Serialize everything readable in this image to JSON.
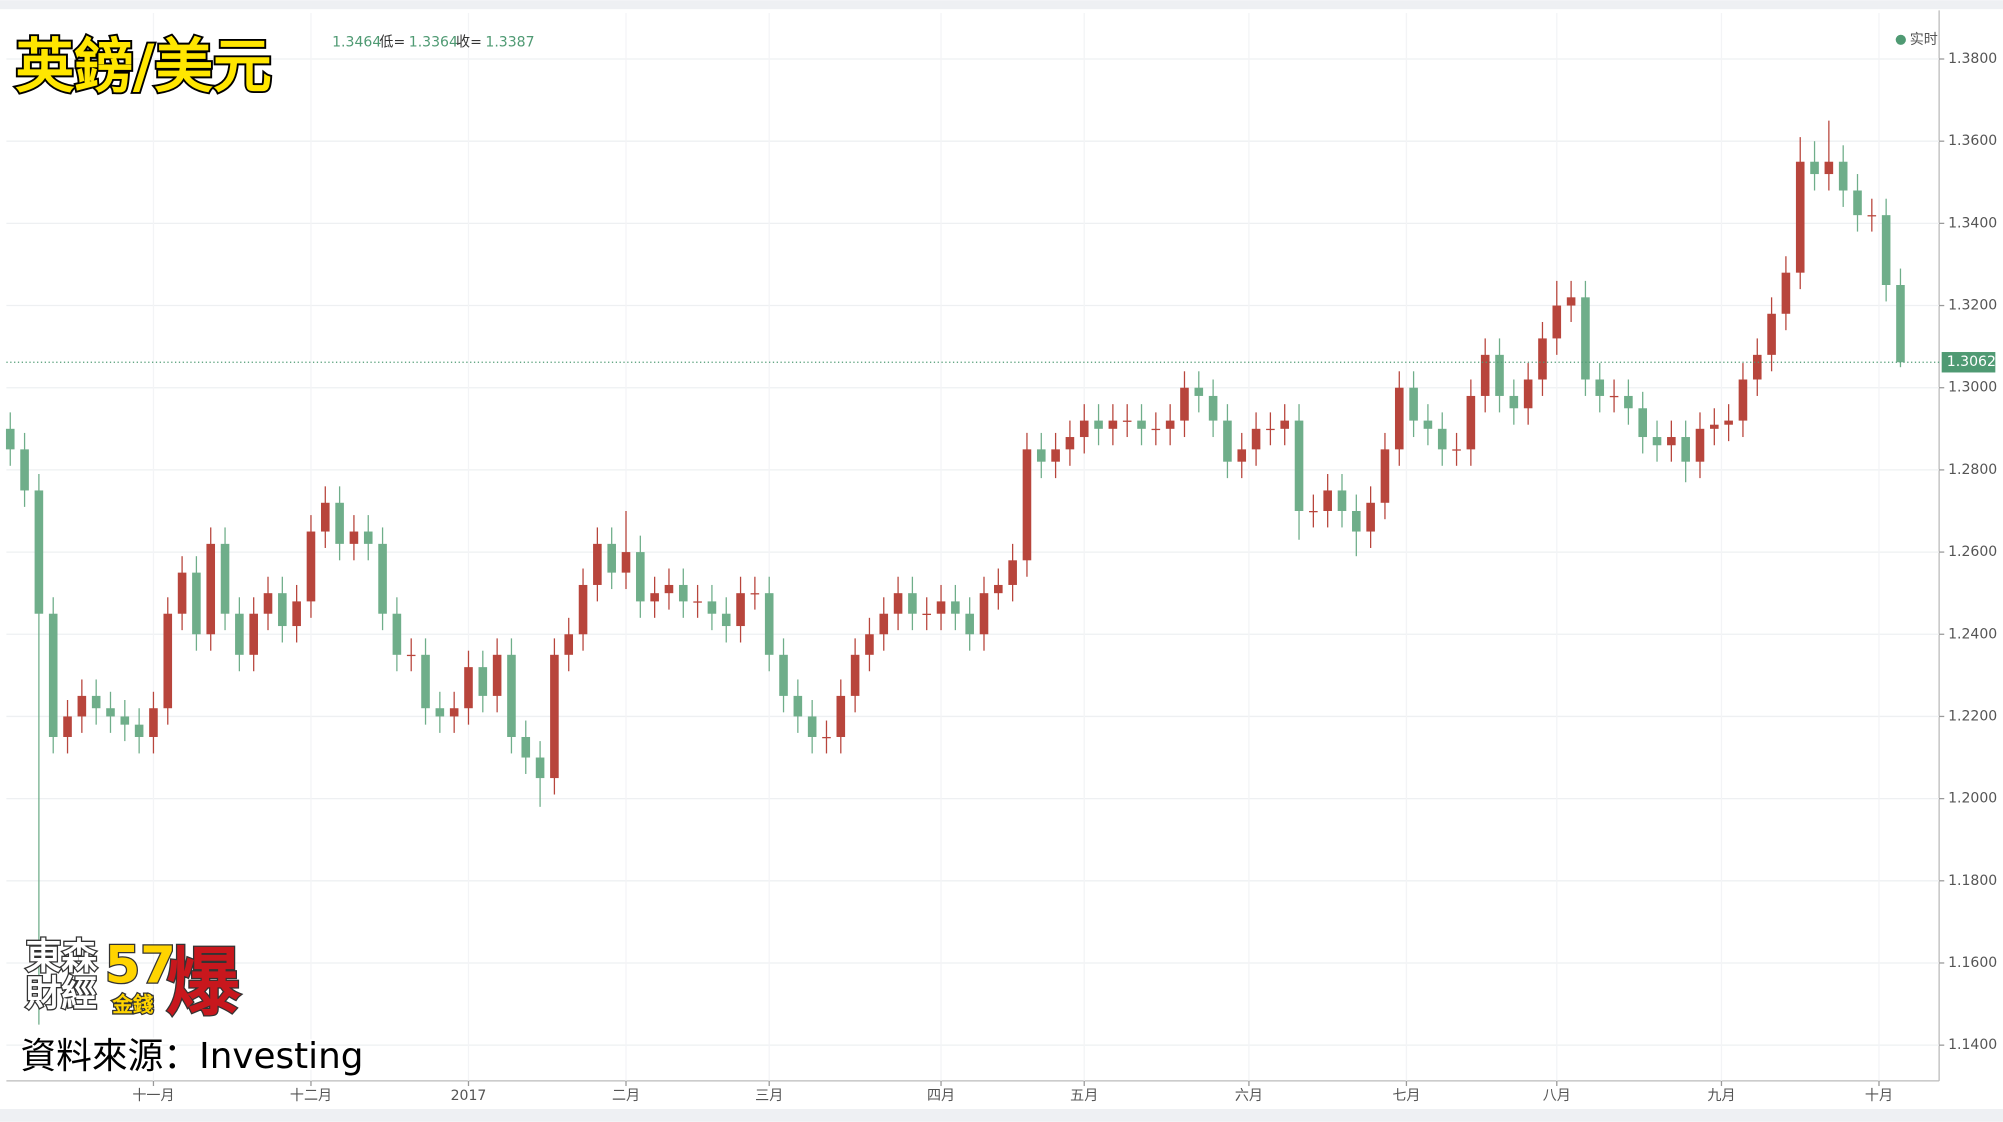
{
  "chart_data": {
    "type": "candlestick",
    "title": "英鎊/美元",
    "info": {
      "prefix_value": 1.3464,
      "low_label": "低=",
      "low": 1.3364,
      "close_label": "收=",
      "close": 1.3387
    },
    "live_label": "实时",
    "source": "資料來源：Investing",
    "logo": {
      "line1": "東森",
      "line2": "財經",
      "number": "57",
      "sub": "金錢",
      "mark": "爆"
    },
    "up_color": "#b8453c",
    "down_color": "#6fae8a",
    "last_price": 1.3062,
    "ylim": [
      1.1313,
      1.3912
    ],
    "yticks": [
      {
        "value": 1.14,
        "label": "1.1400"
      },
      {
        "value": 1.16,
        "label": "1.1600"
      },
      {
        "value": 1.18,
        "label": "1.1800"
      },
      {
        "value": 1.2,
        "label": "1.2000"
      },
      {
        "value": 1.22,
        "label": "1.2200"
      },
      {
        "value": 1.24,
        "label": "1.2400"
      },
      {
        "value": 1.26,
        "label": "1.2600"
      },
      {
        "value": 1.28,
        "label": "1.2800"
      },
      {
        "value": 1.3,
        "label": "1.3000"
      },
      {
        "value": 1.32,
        "label": "1.3200"
      },
      {
        "value": 1.34,
        "label": "1.3400"
      },
      {
        "value": 1.36,
        "label": "1.3600"
      },
      {
        "value": 1.38,
        "label": "1.3800"
      }
    ],
    "xlim": [
      -0.27,
      134.7
    ],
    "xticks": [
      {
        "value": 10,
        "label": "十一月"
      },
      {
        "value": 21,
        "label": "十二月"
      },
      {
        "value": 32,
        "label": "2017"
      },
      {
        "value": 43,
        "label": "二月"
      },
      {
        "value": 53,
        "label": "三月"
      },
      {
        "value": 65,
        "label": "四月"
      },
      {
        "value": 75,
        "label": "五月"
      },
      {
        "value": 86.5,
        "label": "六月"
      },
      {
        "value": 97.5,
        "label": "七月"
      },
      {
        "value": 108,
        "label": "八月"
      },
      {
        "value": 119.5,
        "label": "九月"
      },
      {
        "value": 130.5,
        "label": "十月"
      }
    ],
    "grid": true,
    "open": [
      1.29,
      1.285,
      1.275,
      1.245,
      1.215,
      1.22,
      1.225,
      1.222,
      1.22,
      1.218,
      1.215,
      1.222,
      1.245,
      1.255,
      1.24,
      1.262,
      1.245,
      1.235,
      1.245,
      1.25,
      1.242,
      1.248,
      1.265,
      1.272,
      1.262,
      1.265,
      1.262,
      1.245,
      1.235,
      1.235,
      1.222,
      1.22,
      1.222,
      1.232,
      1.225,
      1.235,
      1.215,
      1.21,
      1.205,
      1.235,
      1.24,
      1.252,
      1.262,
      1.255,
      1.26,
      1.248,
      1.25,
      1.252,
      1.248,
      1.248,
      1.245,
      1.242,
      1.25,
      1.25,
      1.235,
      1.225,
      1.22,
      1.215,
      1.215,
      1.225,
      1.235,
      1.24,
      1.245,
      1.25,
      1.245,
      1.245,
      1.248,
      1.245,
      1.24,
      1.25,
      1.252,
      1.258,
      1.285,
      1.282,
      1.285,
      1.288,
      1.292,
      1.29,
      1.292,
      1.292,
      1.29,
      1.29,
      1.292,
      1.3,
      1.298,
      1.292,
      1.282,
      1.285,
      1.29,
      1.29,
      1.292,
      1.27,
      1.27,
      1.275,
      1.27,
      1.265,
      1.272,
      1.285,
      1.3,
      1.292,
      1.29,
      1.285,
      1.285,
      1.298,
      1.308,
      1.298,
      1.295,
      1.302,
      1.312,
      1.32,
      1.322,
      1.302,
      1.298,
      1.298,
      1.295,
      1.288,
      1.286,
      1.288,
      1.282,
      1.29,
      1.291,
      1.292,
      1.302,
      1.308,
      1.318,
      1.328,
      1.355,
      1.352,
      1.355,
      1.348,
      1.342,
      1.342,
      1.325
    ],
    "high": [
      1.294,
      1.289,
      1.279,
      1.249,
      1.224,
      1.229,
      1.229,
      1.226,
      1.224,
      1.222,
      1.226,
      1.249,
      1.259,
      1.259,
      1.266,
      1.266,
      1.249,
      1.249,
      1.254,
      1.254,
      1.252,
      1.269,
      1.276,
      1.276,
      1.269,
      1.269,
      1.266,
      1.249,
      1.239,
      1.239,
      1.226,
      1.226,
      1.236,
      1.236,
      1.239,
      1.239,
      1.219,
      1.214,
      1.239,
      1.244,
      1.256,
      1.266,
      1.266,
      1.27,
      1.264,
      1.254,
      1.256,
      1.256,
      1.252,
      1.252,
      1.249,
      1.254,
      1.254,
      1.254,
      1.239,
      1.229,
      1.224,
      1.219,
      1.229,
      1.239,
      1.244,
      1.249,
      1.254,
      1.254,
      1.249,
      1.252,
      1.252,
      1.249,
      1.254,
      1.256,
      1.262,
      1.289,
      1.289,
      1.289,
      1.292,
      1.296,
      1.296,
      1.296,
      1.296,
      1.296,
      1.294,
      1.296,
      1.304,
      1.304,
      1.302,
      1.296,
      1.289,
      1.294,
      1.294,
      1.296,
      1.296,
      1.274,
      1.279,
      1.279,
      1.274,
      1.276,
      1.289,
      1.304,
      1.304,
      1.296,
      1.294,
      1.289,
      1.302,
      1.312,
      1.312,
      1.302,
      1.306,
      1.316,
      1.326,
      1.326,
      1.326,
      1.306,
      1.302,
      1.302,
      1.299,
      1.292,
      1.292,
      1.292,
      1.294,
      1.295,
      1.296,
      1.306,
      1.312,
      1.322,
      1.332,
      1.361,
      1.36,
      1.365,
      1.359,
      1.352,
      1.346,
      1.346,
      1.329
    ],
    "low": [
      1.281,
      1.271,
      1.145,
      1.211,
      1.211,
      1.216,
      1.218,
      1.216,
      1.214,
      1.211,
      1.211,
      1.218,
      1.241,
      1.236,
      1.236,
      1.241,
      1.231,
      1.231,
      1.241,
      1.238,
      1.238,
      1.244,
      1.261,
      1.258,
      1.258,
      1.258,
      1.241,
      1.231,
      1.231,
      1.218,
      1.216,
      1.216,
      1.218,
      1.221,
      1.221,
      1.211,
      1.206,
      1.198,
      1.201,
      1.231,
      1.236,
      1.248,
      1.251,
      1.251,
      1.244,
      1.244,
      1.246,
      1.244,
      1.244,
      1.241,
      1.238,
      1.238,
      1.246,
      1.231,
      1.221,
      1.216,
      1.211,
      1.211,
      1.211,
      1.221,
      1.231,
      1.236,
      1.241,
      1.241,
      1.241,
      1.241,
      1.241,
      1.236,
      1.236,
      1.246,
      1.248,
      1.254,
      1.278,
      1.278,
      1.281,
      1.284,
      1.286,
      1.286,
      1.288,
      1.286,
      1.286,
      1.286,
      1.288,
      1.294,
      1.288,
      1.278,
      1.278,
      1.281,
      1.286,
      1.286,
      1.263,
      1.266,
      1.266,
      1.266,
      1.259,
      1.261,
      1.268,
      1.281,
      1.288,
      1.286,
      1.281,
      1.281,
      1.281,
      1.294,
      1.294,
      1.291,
      1.291,
      1.298,
      1.308,
      1.316,
      1.298,
      1.294,
      1.294,
      1.291,
      1.284,
      1.282,
      1.282,
      1.277,
      1.278,
      1.286,
      1.287,
      1.288,
      1.298,
      1.304,
      1.314,
      1.324,
      1.348,
      1.348,
      1.344,
      1.338,
      1.338,
      1.321,
      1.305
    ],
    "close": [
      1.285,
      1.275,
      1.245,
      1.215,
      1.22,
      1.225,
      1.222,
      1.22,
      1.218,
      1.215,
      1.222,
      1.245,
      1.255,
      1.24,
      1.262,
      1.245,
      1.235,
      1.245,
      1.25,
      1.242,
      1.248,
      1.265,
      1.272,
      1.262,
      1.265,
      1.262,
      1.245,
      1.235,
      1.235,
      1.222,
      1.22,
      1.222,
      1.232,
      1.225,
      1.235,
      1.215,
      1.21,
      1.205,
      1.235,
      1.24,
      1.252,
      1.262,
      1.255,
      1.26,
      1.248,
      1.25,
      1.252,
      1.248,
      1.248,
      1.245,
      1.242,
      1.25,
      1.25,
      1.235,
      1.225,
      1.22,
      1.215,
      1.215,
      1.225,
      1.235,
      1.24,
      1.245,
      1.25,
      1.245,
      1.245,
      1.248,
      1.245,
      1.24,
      1.25,
      1.252,
      1.258,
      1.285,
      1.282,
      1.285,
      1.288,
      1.292,
      1.29,
      1.292,
      1.292,
      1.29,
      1.29,
      1.292,
      1.3,
      1.298,
      1.292,
      1.282,
      1.285,
      1.29,
      1.29,
      1.292,
      1.27,
      1.27,
      1.275,
      1.27,
      1.265,
      1.272,
      1.285,
      1.3,
      1.292,
      1.29,
      1.285,
      1.285,
      1.298,
      1.308,
      1.298,
      1.295,
      1.302,
      1.312,
      1.32,
      1.322,
      1.302,
      1.298,
      1.298,
      1.295,
      1.288,
      1.286,
      1.288,
      1.282,
      1.29,
      1.291,
      1.292,
      1.302,
      1.308,
      1.318,
      1.328,
      1.355,
      1.352,
      1.355,
      1.348,
      1.342,
      1.342,
      1.325,
      1.3062
    ]
  }
}
